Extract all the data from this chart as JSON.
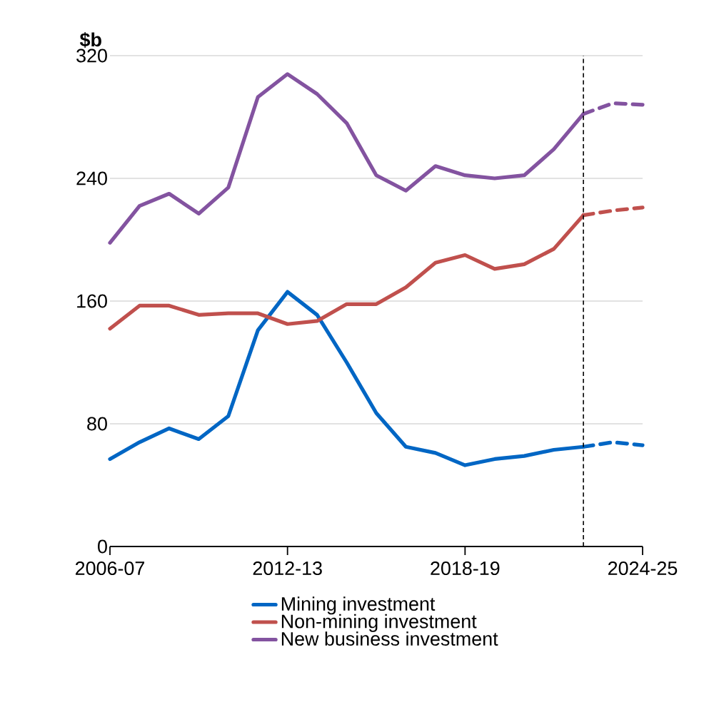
{
  "chart_data": {
    "type": "line",
    "ylabel": "$b",
    "categories": [
      "2006-07",
      null,
      null,
      null,
      null,
      null,
      "2012-13",
      null,
      null,
      null,
      null,
      null,
      "2018-19",
      null,
      null,
      null,
      null,
      null,
      "2024-25"
    ],
    "series": [
      {
        "name": "Mining investment",
        "color": "#0066c4",
        "values": [
          57,
          68,
          77,
          70,
          85,
          141,
          166,
          151,
          120,
          87,
          65,
          61,
          53,
          57,
          59,
          63,
          65,
          null,
          null
        ]
      },
      {
        "name": "Non-mining investment",
        "color": "#c0504d",
        "values": [
          142,
          157,
          157,
          151,
          152,
          152,
          145,
          147,
          158,
          158,
          169,
          185,
          190,
          181,
          184,
          194,
          216,
          null,
          null
        ]
      },
      {
        "name": "New business investment",
        "color": "#8353a0",
        "values": [
          198,
          222,
          230,
          217,
          234,
          293,
          308,
          295,
          276,
          242,
          232,
          248,
          242,
          240,
          242,
          259,
          282,
          null,
          null
        ]
      },
      {
        "color": "#0066c4",
        "line_style": "dashed",
        "values": [
          null,
          null,
          null,
          null,
          null,
          null,
          null,
          null,
          null,
          null,
          null,
          null,
          null,
          null,
          null,
          null,
          65,
          68,
          66
        ]
      },
      {
        "color": "#c0504d",
        "line_style": "dashed",
        "values": [
          null,
          null,
          null,
          null,
          null,
          null,
          null,
          null,
          null,
          null,
          null,
          null,
          null,
          null,
          null,
          null,
          216,
          219,
          221
        ]
      },
      {
        "color": "#8353a0",
        "line_style": "dashed",
        "values": [
          null,
          null,
          null,
          null,
          null,
          null,
          null,
          null,
          null,
          null,
          null,
          null,
          null,
          null,
          null,
          null,
          282,
          289,
          288
        ]
      }
    ],
    "ylim": [
      0,
      320
    ],
    "yticks": [
      0,
      80,
      160,
      240,
      320
    ],
    "grid": "y",
    "legend": "bottom",
    "marker": "none",
    "line_style": "solid"
  }
}
